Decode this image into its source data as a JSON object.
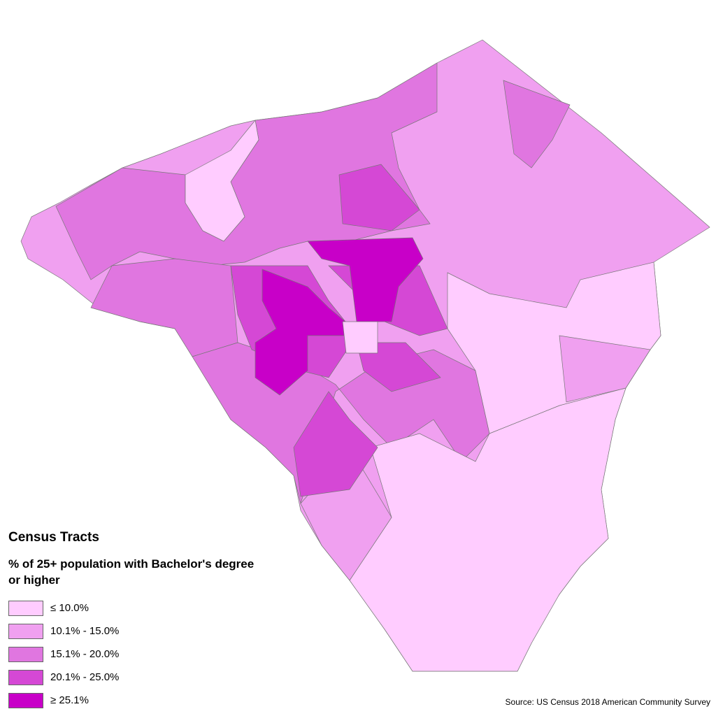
{
  "legend": {
    "title": "Census Tracts",
    "subtitle": "% of 25+ population with Bachelor's degree or higher",
    "classes": [
      {
        "label": "≤ 10.0%",
        "color": "#ffccff"
      },
      {
        "label": "10.1% - 15.0%",
        "color": "#f0a0f0"
      },
      {
        "label": "15.1% - 20.0%",
        "color": "#e076e0"
      },
      {
        "label": "20.1% - 25.0%",
        "color": "#d548d5"
      },
      {
        "label": "≥ 25.1%",
        "color": "#c800c8"
      }
    ]
  },
  "source": "Source: US Census 2018 American Community Survey"
}
